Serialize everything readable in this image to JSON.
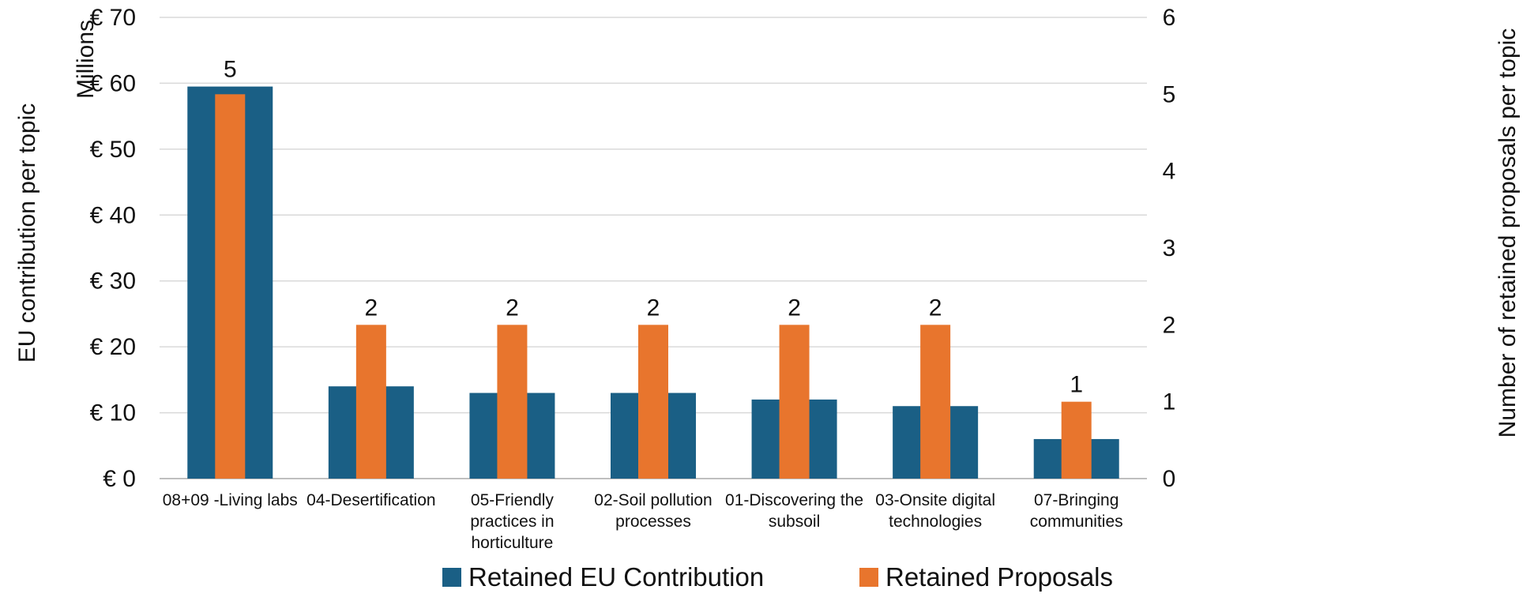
{
  "chart_data": {
    "type": "bar",
    "categories": [
      "08+09 -Living labs",
      "04-Desertification",
      "05-Friendly practices in horticulture",
      "02-Soil pollution processes",
      "01-Discovering the subsoil",
      "03-Onsite digital technologies",
      "07-Bringing communities"
    ],
    "category_lines": [
      [
        "08+09 -Living labs"
      ],
      [
        "04-Desertification"
      ],
      [
        "05-Friendly",
        "practices in",
        "horticulture"
      ],
      [
        "02-Soil pollution",
        "processes"
      ],
      [
        "01-Discovering the",
        "subsoil"
      ],
      [
        "03-Onsite digital",
        "technologies"
      ],
      [
        "07-Bringing",
        "communities"
      ]
    ],
    "series": [
      {
        "name": "Retained EU Contribution",
        "axis": "left",
        "unit": "€ millions",
        "color": "#1a5f85",
        "values": [
          59.5,
          14,
          13,
          13,
          12,
          11,
          6
        ]
      },
      {
        "name": "Retained Proposals",
        "axis": "right",
        "color": "#e8752d",
        "values": [
          5,
          2,
          2,
          2,
          2,
          2,
          1
        ],
        "data_labels": [
          "5",
          "2",
          "2",
          "2",
          "2",
          "2",
          "1"
        ]
      }
    ],
    "y_left": {
      "label": "EU contribution per topic",
      "unit_label": "Millions",
      "ylim": [
        0,
        70
      ],
      "ticks": [
        0,
        10,
        20,
        30,
        40,
        50,
        60,
        70
      ],
      "tick_labels": [
        "€ 0",
        "€ 10",
        "€ 20",
        "€ 30",
        "€ 40",
        "€ 50",
        "€ 60",
        "€ 70"
      ]
    },
    "y_right": {
      "label": "Number of retained proposals per topic",
      "ylim": [
        0,
        6
      ],
      "ticks": [
        0,
        1,
        2,
        3,
        4,
        5,
        6
      ],
      "tick_labels": [
        "0",
        "1",
        "2",
        "3",
        "4",
        "5",
        "6"
      ]
    },
    "grid": true,
    "legend": "bottom"
  }
}
